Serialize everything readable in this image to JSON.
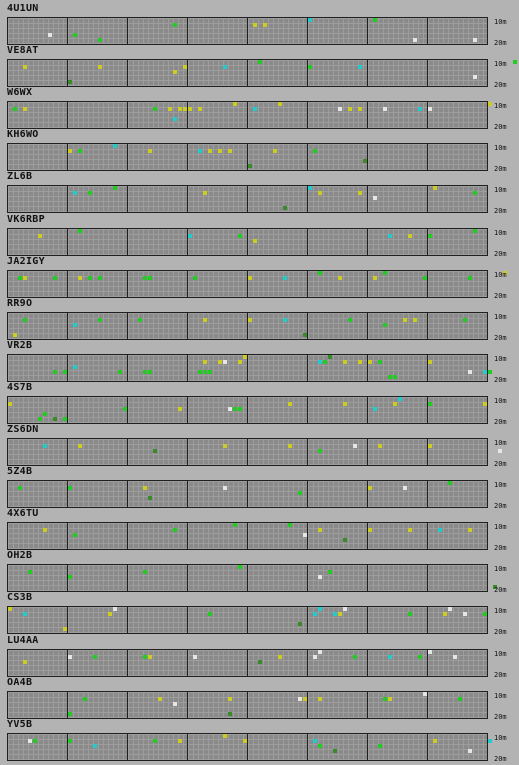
{
  "band_labels": {
    "top": "10m",
    "bottom": "20m"
  },
  "colors": {
    "grid_background": "#8a8a8a",
    "grid_lines": "#9d9d9d",
    "dividers": "#202020",
    "page_background": "#b3b3b3",
    "legend_green": "#22cc22",
    "legend_yellow": "#cccc22",
    "legend_cyan": "#22cccc",
    "legend_white": "#e6e6e6",
    "legend_darkgreen": "#3a8a2a"
  },
  "stations": [
    {
      "callsign": "4U1UN",
      "cells": [
        [
          13,
          3,
          "green"
        ],
        [
          49,
          1,
          "yellow"
        ],
        [
          51,
          1,
          "yellow"
        ],
        [
          60,
          0,
          "cyan"
        ],
        [
          81,
          4,
          "white"
        ],
        [
          93,
          4,
          "white"
        ],
        [
          8,
          3,
          "white"
        ],
        [
          33,
          1,
          "green"
        ],
        [
          73,
          0,
          "green"
        ],
        [
          18,
          4,
          "green"
        ]
      ]
    },
    {
      "callsign": "VE8AT",
      "cells": [
        [
          3,
          1,
          "yellow"
        ],
        [
          18,
          1,
          "yellow"
        ],
        [
          33,
          2,
          "yellow"
        ],
        [
          35,
          1,
          "yellow"
        ],
        [
          43,
          1,
          "cyan"
        ],
        [
          60,
          1,
          "green"
        ],
        [
          70,
          1,
          "cyan"
        ],
        [
          93,
          3,
          "white"
        ],
        [
          12,
          4,
          "darkgreen"
        ],
        [
          50,
          0,
          "green"
        ],
        [
          101,
          0,
          "green"
        ]
      ]
    },
    {
      "callsign": "W6WX",
      "cells": [
        [
          3,
          1,
          "yellow"
        ],
        [
          29,
          1,
          "green"
        ],
        [
          32,
          1,
          "yellow"
        ],
        [
          34,
          1,
          "yellow"
        ],
        [
          35,
          1,
          "yellow"
        ],
        [
          36,
          1,
          "yellow"
        ],
        [
          38,
          1,
          "yellow"
        ],
        [
          45,
          0,
          "yellow"
        ],
        [
          49,
          1,
          "cyan"
        ],
        [
          54,
          0,
          "yellow"
        ],
        [
          66,
          1,
          "white"
        ],
        [
          68,
          1,
          "yellow"
        ],
        [
          70,
          1,
          "yellow"
        ],
        [
          75,
          1,
          "white"
        ],
        [
          82,
          1,
          "cyan"
        ],
        [
          84,
          1,
          "white"
        ],
        [
          96,
          0,
          "yellow"
        ],
        [
          33,
          3,
          "cyan"
        ],
        [
          1,
          1,
          "green"
        ]
      ]
    },
    {
      "callsign": "KH6WO",
      "cells": [
        [
          12,
          1,
          "yellow"
        ],
        [
          28,
          1,
          "yellow"
        ],
        [
          38,
          1,
          "cyan"
        ],
        [
          40,
          1,
          "yellow"
        ],
        [
          42,
          1,
          "yellow"
        ],
        [
          44,
          1,
          "yellow"
        ],
        [
          53,
          1,
          "yellow"
        ],
        [
          61,
          1,
          "green"
        ],
        [
          71,
          3,
          "darkgreen"
        ],
        [
          48,
          4,
          "darkgreen"
        ],
        [
          21,
          0,
          "cyan"
        ],
        [
          14,
          1,
          "green"
        ]
      ]
    },
    {
      "callsign": "ZL6B",
      "cells": [
        [
          13,
          1,
          "cyan"
        ],
        [
          16,
          1,
          "green"
        ],
        [
          21,
          0,
          "green"
        ],
        [
          39,
          1,
          "yellow"
        ],
        [
          60,
          0,
          "cyan"
        ],
        [
          62,
          1,
          "yellow"
        ],
        [
          70,
          1,
          "yellow"
        ],
        [
          73,
          2,
          "white"
        ],
        [
          85,
          0,
          "yellow"
        ],
        [
          55,
          4,
          "darkgreen"
        ],
        [
          93,
          1,
          "green"
        ]
      ]
    },
    {
      "callsign": "VK6RBP",
      "cells": [
        [
          6,
          1,
          "yellow"
        ],
        [
          14,
          0,
          "green"
        ],
        [
          36,
          1,
          "cyan"
        ],
        [
          46,
          1,
          "green"
        ],
        [
          49,
          2,
          "yellow"
        ],
        [
          76,
          1,
          "cyan"
        ],
        [
          80,
          1,
          "yellow"
        ],
        [
          84,
          1,
          "green"
        ],
        [
          93,
          0,
          "green"
        ]
      ]
    },
    {
      "callsign": "JA2IGY",
      "cells": [
        [
          2,
          1,
          "green"
        ],
        [
          3,
          1,
          "yellow"
        ],
        [
          9,
          1,
          "green"
        ],
        [
          14,
          1,
          "yellow"
        ],
        [
          16,
          1,
          "green"
        ],
        [
          18,
          1,
          "green"
        ],
        [
          27,
          1,
          "green"
        ],
        [
          28,
          1,
          "green"
        ],
        [
          37,
          1,
          "green"
        ],
        [
          48,
          1,
          "yellow"
        ],
        [
          55,
          1,
          "cyan"
        ],
        [
          62,
          0,
          "green"
        ],
        [
          66,
          1,
          "yellow"
        ],
        [
          73,
          1,
          "yellow"
        ],
        [
          75,
          0,
          "green"
        ],
        [
          83,
          1,
          "green"
        ],
        [
          92,
          1,
          "green"
        ],
        [
          99,
          0,
          "yellow"
        ]
      ]
    },
    {
      "callsign": "RR9O",
      "cells": [
        [
          3,
          1,
          "green"
        ],
        [
          13,
          2,
          "cyan"
        ],
        [
          18,
          1,
          "green"
        ],
        [
          26,
          1,
          "green"
        ],
        [
          39,
          1,
          "yellow"
        ],
        [
          48,
          1,
          "yellow"
        ],
        [
          55,
          1,
          "cyan"
        ],
        [
          68,
          1,
          "green"
        ],
        [
          75,
          2,
          "green"
        ],
        [
          79,
          1,
          "yellow"
        ],
        [
          81,
          1,
          "yellow"
        ],
        [
          1,
          4,
          "yellow"
        ],
        [
          59,
          4,
          "darkgreen"
        ],
        [
          91,
          1,
          "green"
        ]
      ]
    },
    {
      "callsign": "VR2B",
      "cells": [
        [
          9,
          3,
          "green"
        ],
        [
          11,
          3,
          "green"
        ],
        [
          13,
          2,
          "cyan"
        ],
        [
          22,
          3,
          "green"
        ],
        [
          27,
          3,
          "green"
        ],
        [
          28,
          3,
          "green"
        ],
        [
          38,
          3,
          "green"
        ],
        [
          39,
          3,
          "green"
        ],
        [
          40,
          3,
          "green"
        ],
        [
          39,
          1,
          "yellow"
        ],
        [
          42,
          1,
          "yellow"
        ],
        [
          43,
          1,
          "white"
        ],
        [
          46,
          1,
          "yellow"
        ],
        [
          47,
          0,
          "yellow"
        ],
        [
          62,
          1,
          "cyan"
        ],
        [
          63,
          1,
          "green"
        ],
        [
          67,
          1,
          "yellow"
        ],
        [
          70,
          1,
          "yellow"
        ],
        [
          72,
          1,
          "yellow"
        ],
        [
          74,
          1,
          "green"
        ],
        [
          76,
          4,
          "green"
        ],
        [
          77,
          4,
          "green"
        ],
        [
          84,
          1,
          "yellow"
        ],
        [
          92,
          3,
          "white"
        ],
        [
          95,
          3,
          "cyan"
        ],
        [
          96,
          3,
          "green"
        ],
        [
          64,
          0,
          "darkgreen"
        ]
      ]
    },
    {
      "callsign": "4S7B",
      "cells": [
        [
          0,
          1,
          "yellow"
        ],
        [
          6,
          4,
          "green"
        ],
        [
          7,
          3,
          "green"
        ],
        [
          11,
          4,
          "green"
        ],
        [
          23,
          2,
          "green"
        ],
        [
          34,
          2,
          "yellow"
        ],
        [
          44,
          2,
          "white"
        ],
        [
          45,
          2,
          "green"
        ],
        [
          46,
          2,
          "green"
        ],
        [
          56,
          1,
          "yellow"
        ],
        [
          67,
          1,
          "yellow"
        ],
        [
          73,
          2,
          "cyan"
        ],
        [
          77,
          1,
          "yellow"
        ],
        [
          78,
          0,
          "cyan"
        ],
        [
          84,
          1,
          "green"
        ],
        [
          9,
          4,
          "darkgreen"
        ],
        [
          95,
          1,
          "yellow"
        ]
      ]
    },
    {
      "callsign": "ZS6DN",
      "cells": [
        [
          7,
          1,
          "cyan"
        ],
        [
          14,
          1,
          "yellow"
        ],
        [
          43,
          1,
          "yellow"
        ],
        [
          56,
          1,
          "yellow"
        ],
        [
          69,
          1,
          "white"
        ],
        [
          74,
          1,
          "yellow"
        ],
        [
          84,
          1,
          "yellow"
        ],
        [
          98,
          2,
          "white"
        ],
        [
          29,
          2,
          "darkgreen"
        ],
        [
          62,
          2,
          "green"
        ]
      ]
    },
    {
      "callsign": "5Z4B",
      "cells": [
        [
          2,
          1,
          "green"
        ],
        [
          12,
          1,
          "green"
        ],
        [
          27,
          1,
          "yellow"
        ],
        [
          43,
          1,
          "white"
        ],
        [
          58,
          2,
          "green"
        ],
        [
          72,
          1,
          "yellow"
        ],
        [
          79,
          1,
          "white"
        ],
        [
          28,
          3,
          "darkgreen"
        ],
        [
          88,
          0,
          "green"
        ]
      ]
    },
    {
      "callsign": "4X6TU",
      "cells": [
        [
          7,
          1,
          "yellow"
        ],
        [
          13,
          2,
          "green"
        ],
        [
          33,
          1,
          "green"
        ],
        [
          45,
          0,
          "green"
        ],
        [
          59,
          2,
          "white"
        ],
        [
          62,
          1,
          "yellow"
        ],
        [
          72,
          1,
          "yellow"
        ],
        [
          80,
          1,
          "yellow"
        ],
        [
          86,
          1,
          "cyan"
        ],
        [
          92,
          1,
          "yellow"
        ],
        [
          67,
          3,
          "darkgreen"
        ],
        [
          56,
          0,
          "green"
        ]
      ]
    },
    {
      "callsign": "OH2B",
      "cells": [
        [
          4,
          1,
          "green"
        ],
        [
          12,
          2,
          "green"
        ],
        [
          27,
          1,
          "green"
        ],
        [
          62,
          2,
          "white"
        ],
        [
          64,
          1,
          "green"
        ],
        [
          46,
          0,
          "green"
        ],
        [
          97,
          4,
          "darkgreen"
        ]
      ]
    },
    {
      "callsign": "CS3B",
      "cells": [
        [
          0,
          0,
          "yellow"
        ],
        [
          3,
          1,
          "cyan"
        ],
        [
          20,
          1,
          "yellow"
        ],
        [
          21,
          0,
          "white"
        ],
        [
          40,
          1,
          "green"
        ],
        [
          61,
          1,
          "cyan"
        ],
        [
          62,
          0,
          "cyan"
        ],
        [
          65,
          1,
          "cyan"
        ],
        [
          66,
          1,
          "yellow"
        ],
        [
          67,
          0,
          "white"
        ],
        [
          80,
          1,
          "green"
        ],
        [
          87,
          1,
          "yellow"
        ],
        [
          88,
          0,
          "white"
        ],
        [
          91,
          1,
          "white"
        ],
        [
          95,
          1,
          "green"
        ],
        [
          11,
          4,
          "yellow"
        ],
        [
          58,
          3,
          "darkgreen"
        ]
      ]
    },
    {
      "callsign": "LU4AA",
      "cells": [
        [
          3,
          2,
          "yellow"
        ],
        [
          12,
          1,
          "white"
        ],
        [
          17,
          1,
          "green"
        ],
        [
          27,
          1,
          "green"
        ],
        [
          28,
          1,
          "yellow"
        ],
        [
          37,
          1,
          "white"
        ],
        [
          54,
          1,
          "yellow"
        ],
        [
          61,
          1,
          "white"
        ],
        [
          62,
          0,
          "white"
        ],
        [
          69,
          1,
          "green"
        ],
        [
          76,
          1,
          "cyan"
        ],
        [
          82,
          1,
          "green"
        ],
        [
          84,
          0,
          "white"
        ],
        [
          89,
          1,
          "white"
        ],
        [
          50,
          2,
          "darkgreen"
        ]
      ]
    },
    {
      "callsign": "OA4B",
      "cells": [
        [
          12,
          4,
          "green"
        ],
        [
          30,
          1,
          "yellow"
        ],
        [
          33,
          2,
          "white"
        ],
        [
          44,
          1,
          "yellow"
        ],
        [
          58,
          1,
          "white"
        ],
        [
          59,
          1,
          "yellow"
        ],
        [
          62,
          1,
          "yellow"
        ],
        [
          75,
          1,
          "green"
        ],
        [
          76,
          1,
          "yellow"
        ],
        [
          83,
          0,
          "white"
        ],
        [
          44,
          4,
          "darkgreen"
        ],
        [
          15,
          1,
          "green"
        ],
        [
          90,
          1,
          "green"
        ]
      ]
    },
    {
      "callsign": "YV5B",
      "cells": [
        [
          4,
          1,
          "white"
        ],
        [
          5,
          1,
          "green"
        ],
        [
          12,
          1,
          "green"
        ],
        [
          17,
          2,
          "cyan"
        ],
        [
          29,
          1,
          "green"
        ],
        [
          34,
          1,
          "yellow"
        ],
        [
          43,
          0,
          "yellow"
        ],
        [
          47,
          1,
          "yellow"
        ],
        [
          61,
          1,
          "cyan"
        ],
        [
          62,
          2,
          "green"
        ],
        [
          65,
          3,
          "darkgreen"
        ],
        [
          74,
          2,
          "green"
        ],
        [
          85,
          1,
          "yellow"
        ],
        [
          92,
          3,
          "white"
        ],
        [
          96,
          1,
          "cyan"
        ]
      ]
    }
  ]
}
